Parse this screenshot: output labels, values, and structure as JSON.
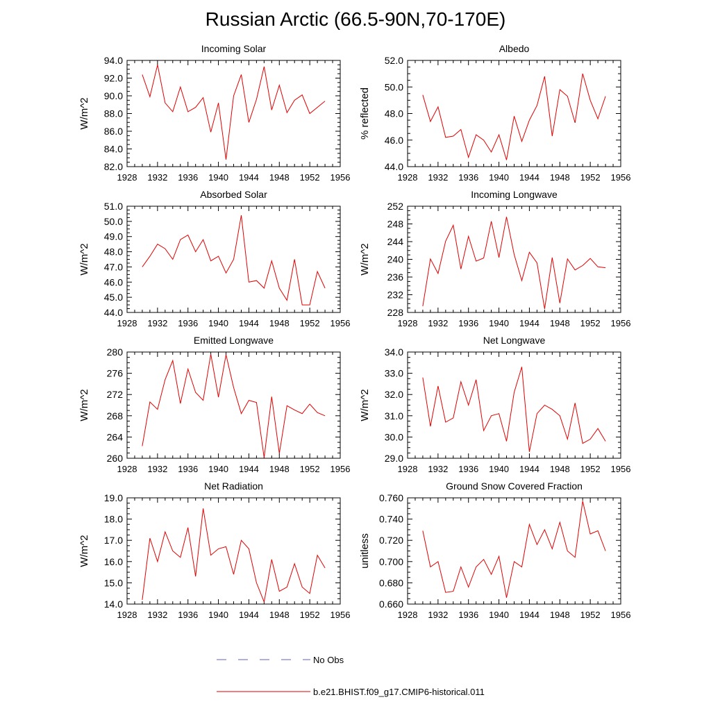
{
  "figure": {
    "title": "Russian Arctic (66.5-90N,70-170E)"
  },
  "legend": {
    "items": [
      {
        "label": "No Obs",
        "color": "#6060c0",
        "dash": true
      },
      {
        "label": "b.e21.BHIST.f09_g17.CMIP6-historical.011",
        "color": "#e00000",
        "dash": false
      }
    ]
  },
  "chart_data": [
    {
      "type": "line",
      "title": "Incoming Solar",
      "xlabel": "",
      "ylabel": "W/m^2",
      "xlim": [
        1928,
        1956
      ],
      "ylim": [
        82,
        94
      ],
      "x_ticks": [
        1928,
        1932,
        1936,
        1940,
        1944,
        1948,
        1952,
        1956
      ],
      "y_ticks": [
        "82.0",
        "84.0",
        "86.0",
        "88.0",
        "90.0",
        "92.0",
        "94.0"
      ],
      "series": [
        {
          "color": "#e00000",
          "x": [
            1930,
            1931,
            1932,
            1933,
            1934,
            1935,
            1936,
            1937,
            1938,
            1939,
            1940,
            1941,
            1942,
            1943,
            1944,
            1945,
            1946,
            1947,
            1948,
            1949,
            1950,
            1951,
            1952,
            1953,
            1954
          ],
          "values": [
            92.4,
            89.9,
            93.5,
            89.2,
            88.2,
            91.0,
            88.2,
            88.7,
            89.8,
            85.9,
            89.2,
            82.8,
            90.0,
            92.4,
            87.0,
            89.6,
            93.3,
            88.4,
            91.2,
            88.1,
            89.5,
            90.1,
            88.0,
            88.7,
            89.4
          ]
        }
      ]
    },
    {
      "type": "line",
      "title": "Albedo",
      "xlabel": "",
      "ylabel": "% reflected",
      "xlim": [
        1928,
        1956
      ],
      "ylim": [
        44,
        52
      ],
      "x_ticks": [
        1928,
        1932,
        1936,
        1940,
        1944,
        1948,
        1952,
        1956
      ],
      "y_ticks": [
        "44.0",
        "46.0",
        "48.0",
        "50.0",
        "52.0"
      ],
      "series": [
        {
          "color": "#e00000",
          "x": [
            1930,
            1931,
            1932,
            1933,
            1934,
            1935,
            1936,
            1937,
            1938,
            1939,
            1940,
            1941,
            1942,
            1943,
            1944,
            1945,
            1946,
            1947,
            1948,
            1949,
            1950,
            1951,
            1952,
            1953,
            1954
          ],
          "values": [
            49.4,
            47.4,
            48.5,
            46.2,
            46.3,
            46.8,
            44.7,
            46.4,
            46.0,
            45.1,
            46.4,
            44.5,
            47.8,
            45.9,
            47.5,
            48.6,
            50.8,
            46.3,
            49.8,
            49.3,
            47.3,
            51.0,
            49.0,
            47.6,
            49.3
          ]
        }
      ]
    },
    {
      "type": "line",
      "title": "Absorbed Solar",
      "xlabel": "",
      "ylabel": "W/m^2",
      "xlim": [
        1928,
        1956
      ],
      "ylim": [
        44,
        51
      ],
      "x_ticks": [
        1928,
        1932,
        1936,
        1940,
        1944,
        1948,
        1952,
        1956
      ],
      "y_ticks": [
        "44.0",
        "45.0",
        "46.0",
        "47.0",
        "48.0",
        "49.0",
        "50.0",
        "51.0"
      ],
      "series": [
        {
          "color": "#e00000",
          "x": [
            1930,
            1931,
            1932,
            1933,
            1934,
            1935,
            1936,
            1937,
            1938,
            1939,
            1940,
            1941,
            1942,
            1943,
            1944,
            1945,
            1946,
            1947,
            1948,
            1949,
            1950,
            1951,
            1952,
            1953,
            1954
          ],
          "values": [
            47.0,
            47.7,
            48.5,
            48.2,
            47.5,
            48.8,
            49.1,
            48.0,
            48.8,
            47.4,
            47.7,
            46.6,
            47.5,
            50.4,
            46.0,
            46.1,
            45.6,
            47.4,
            45.6,
            44.8,
            47.5,
            44.5,
            44.5,
            46.7,
            45.6
          ]
        }
      ]
    },
    {
      "type": "line",
      "title": "Incoming Longwave",
      "xlabel": "",
      "ylabel": "W/m^2",
      "xlim": [
        1928,
        1956
      ],
      "ylim": [
        228,
        252
      ],
      "x_ticks": [
        1928,
        1932,
        1936,
        1940,
        1944,
        1948,
        1952,
        1956
      ],
      "y_ticks": [
        "228",
        "232",
        "236",
        "240",
        "244",
        "248",
        "252"
      ],
      "series": [
        {
          "color": "#e00000",
          "x": [
            1930,
            1931,
            1932,
            1933,
            1934,
            1935,
            1936,
            1937,
            1938,
            1939,
            1940,
            1941,
            1942,
            1943,
            1944,
            1945,
            1946,
            1947,
            1948,
            1949,
            1950,
            1951,
            1952,
            1953,
            1954
          ],
          "values": [
            229.4,
            240.1,
            236.8,
            244.1,
            247.7,
            237.8,
            245.2,
            239.6,
            240.3,
            248.6,
            240.4,
            249.6,
            241.1,
            235.2,
            241.6,
            239.2,
            228.8,
            240.4,
            230.1,
            240.1,
            237.6,
            238.6,
            240.2,
            238.3,
            238.1
          ]
        }
      ]
    },
    {
      "type": "line",
      "title": "Emitted Longwave",
      "xlabel": "",
      "ylabel": "W/m^2",
      "xlim": [
        1928,
        1956
      ],
      "ylim": [
        260,
        280
      ],
      "x_ticks": [
        1928,
        1932,
        1936,
        1940,
        1944,
        1948,
        1952,
        1956
      ],
      "y_ticks": [
        "260",
        "264",
        "268",
        "272",
        "276",
        "280"
      ],
      "series": [
        {
          "color": "#e00000",
          "x": [
            1930,
            1931,
            1932,
            1933,
            1934,
            1935,
            1936,
            1937,
            1938,
            1939,
            1940,
            1941,
            1942,
            1943,
            1944,
            1945,
            1946,
            1947,
            1948,
            1949,
            1950,
            1951,
            1952,
            1953,
            1954
          ],
          "values": [
            262.3,
            270.6,
            269.2,
            274.8,
            278.4,
            270.3,
            276.8,
            272.4,
            270.9,
            279.6,
            271.5,
            279.5,
            273.3,
            268.4,
            270.9,
            270.5,
            260.1,
            271.6,
            260.9,
            269.9,
            269.1,
            268.4,
            270.2,
            268.6,
            268.0
          ]
        }
      ]
    },
    {
      "type": "line",
      "title": "Net Longwave",
      "xlabel": "",
      "ylabel": "W/m^2",
      "xlim": [
        1928,
        1956
      ],
      "ylim": [
        29,
        34
      ],
      "x_ticks": [
        1928,
        1932,
        1936,
        1940,
        1944,
        1948,
        1952,
        1956
      ],
      "y_ticks": [
        "29.0",
        "30.0",
        "31.0",
        "32.0",
        "33.0",
        "34.0"
      ],
      "series": [
        {
          "color": "#e00000",
          "x": [
            1930,
            1931,
            1932,
            1933,
            1934,
            1935,
            1936,
            1937,
            1938,
            1939,
            1940,
            1941,
            1942,
            1943,
            1944,
            1945,
            1946,
            1947,
            1948,
            1949,
            1950,
            1951,
            1952,
            1953,
            1954
          ],
          "values": [
            32.8,
            30.5,
            32.4,
            30.7,
            30.9,
            32.6,
            31.5,
            32.7,
            30.3,
            31.0,
            31.1,
            29.8,
            32.1,
            33.3,
            29.3,
            31.1,
            31.5,
            31.3,
            31.0,
            29.9,
            31.6,
            29.7,
            29.9,
            30.4,
            29.8
          ]
        }
      ]
    },
    {
      "type": "line",
      "title": "Net Radiation",
      "xlabel": "",
      "ylabel": "W/m^2",
      "xlim": [
        1928,
        1956
      ],
      "ylim": [
        14,
        19
      ],
      "x_ticks": [
        1928,
        1932,
        1936,
        1940,
        1944,
        1948,
        1952,
        1956
      ],
      "y_ticks": [
        "14.0",
        "15.0",
        "16.0",
        "17.0",
        "18.0",
        "19.0"
      ],
      "series": [
        {
          "color": "#e00000",
          "x": [
            1930,
            1931,
            1932,
            1933,
            1934,
            1935,
            1936,
            1937,
            1938,
            1939,
            1940,
            1941,
            1942,
            1943,
            1944,
            1945,
            1946,
            1947,
            1948,
            1949,
            1950,
            1951,
            1952,
            1953,
            1954
          ],
          "values": [
            14.2,
            17.1,
            16.0,
            17.4,
            16.5,
            16.2,
            17.6,
            15.3,
            18.5,
            16.3,
            16.6,
            16.7,
            15.4,
            17.0,
            16.6,
            15.0,
            14.1,
            16.1,
            14.6,
            14.8,
            15.9,
            14.8,
            14.5,
            16.3,
            15.7
          ]
        }
      ]
    },
    {
      "type": "line",
      "title": "Ground Snow Covered Fraction",
      "xlabel": "",
      "ylabel": "unitless",
      "xlim": [
        1928,
        1956
      ],
      "ylim": [
        0.66,
        0.76
      ],
      "x_ticks": [
        1928,
        1932,
        1936,
        1940,
        1944,
        1948,
        1952,
        1956
      ],
      "y_ticks": [
        "0.660",
        "0.680",
        "0.700",
        "0.720",
        "0.740",
        "0.760"
      ],
      "series": [
        {
          "color": "#e00000",
          "x": [
            1930,
            1931,
            1932,
            1933,
            1934,
            1935,
            1936,
            1937,
            1938,
            1939,
            1940,
            1941,
            1942,
            1943,
            1944,
            1945,
            1946,
            1947,
            1948,
            1949,
            1950,
            1951,
            1952,
            1953,
            1954
          ],
          "values": [
            0.729,
            0.695,
            0.7,
            0.671,
            0.672,
            0.695,
            0.676,
            0.695,
            0.702,
            0.688,
            0.705,
            0.666,
            0.7,
            0.695,
            0.735,
            0.716,
            0.73,
            0.712,
            0.737,
            0.71,
            0.704,
            0.757,
            0.726,
            0.729,
            0.71
          ]
        }
      ]
    }
  ]
}
